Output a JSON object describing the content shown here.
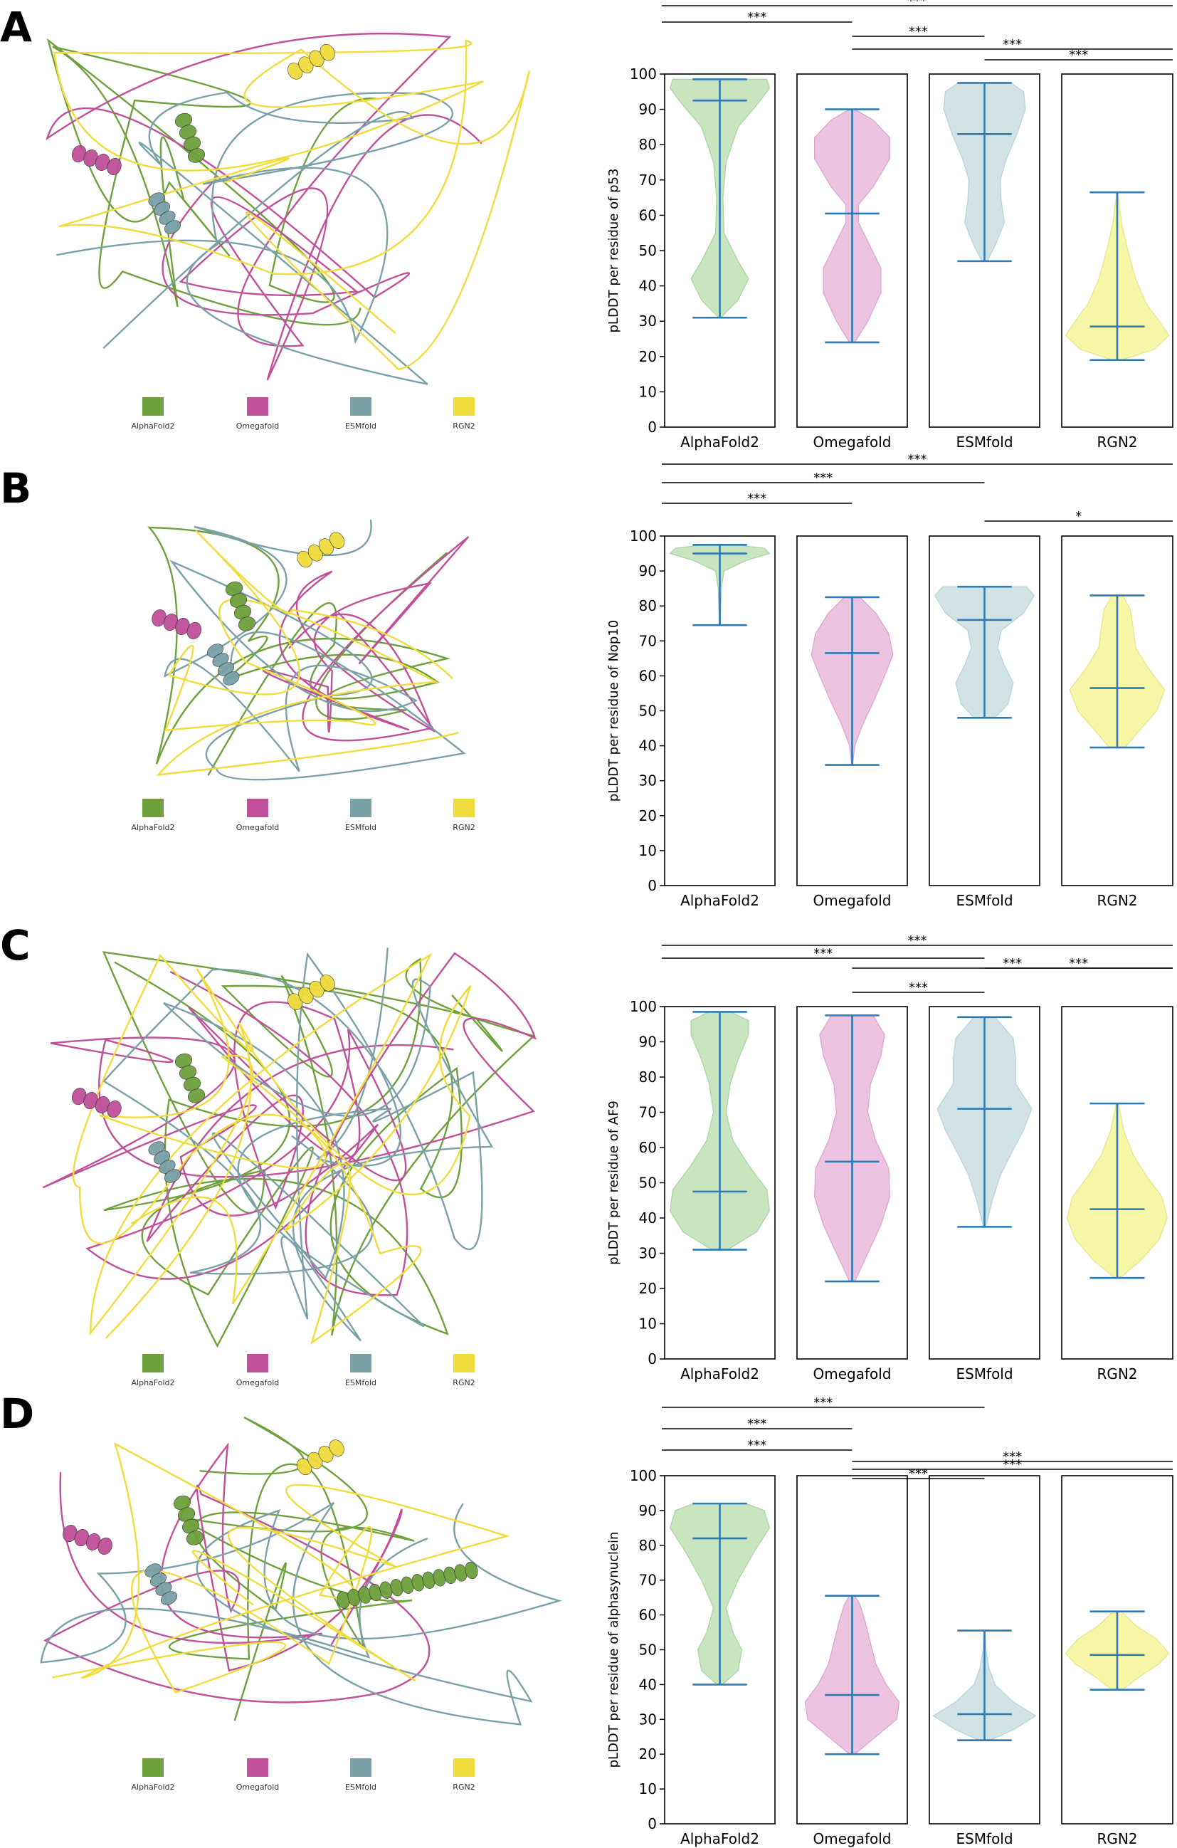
{
  "legend": [
    {
      "label": "AlphaFold2",
      "color": "#6ea03c"
    },
    {
      "label": "Omegafold",
      "color": "#c0509a"
    },
    {
      "label": "ESMfold",
      "color": "#7aa0a8"
    },
    {
      "label": "RGN2",
      "color": "#f0dc3c"
    }
  ],
  "tool_colors": {
    "AlphaFold2": {
      "fill": "#c9e5c0",
      "edge": "#a8d3a0"
    },
    "Omegafold": {
      "fill": "#ecc3e1",
      "edge": "#d9a3cf"
    },
    "ESMfold": {
      "fill": "#d2e3e6",
      "edge": "#b7d2d6"
    },
    "RGN2": {
      "fill": "#f8f7a8",
      "edge": "#e6e58a"
    }
  },
  "stat_color": "#2e7bb4",
  "panels": [
    {
      "letter": "A",
      "structure_desc": "ribbon",
      "chart_data": {
        "type": "violin",
        "ylabel": "pLDDT per residue of p53",
        "ylim": [
          0,
          100
        ],
        "yticks": [
          0,
          10,
          20,
          30,
          40,
          50,
          60,
          70,
          80,
          90,
          100
        ],
        "categories": [
          "AlphaFold2",
          "Omegafold",
          "ESMfold",
          "RGN2"
        ],
        "series": [
          {
            "name": "AlphaFold2",
            "min": 31,
            "median": 92.5,
            "max": 98.5,
            "profile": [
              [
                31,
                0.02
              ],
              [
                36,
                0.35
              ],
              [
                42,
                0.55
              ],
              [
                47,
                0.35
              ],
              [
                55,
                0.08
              ],
              [
                65,
                0.06
              ],
              [
                75,
                0.12
              ],
              [
                85,
                0.35
              ],
              [
                92,
                0.75
              ],
              [
                96,
                0.95
              ],
              [
                98.5,
                0.9
              ]
            ]
          },
          {
            "name": "Omegafold",
            "min": 24,
            "median": 60.5,
            "max": 90,
            "profile": [
              [
                24,
                0.05
              ],
              [
                30,
                0.3
              ],
              [
                38,
                0.55
              ],
              [
                45,
                0.55
              ],
              [
                52,
                0.32
              ],
              [
                58,
                0.12
              ],
              [
                63,
                0.12
              ],
              [
                68,
                0.4
              ],
              [
                76,
                0.72
              ],
              [
                82,
                0.72
              ],
              [
                87,
                0.4
              ],
              [
                90,
                0.05
              ]
            ]
          },
          {
            "name": "ESMfold",
            "min": 47,
            "median": 83,
            "max": 97.5,
            "profile": [
              [
                47,
                0.05
              ],
              [
                52,
                0.22
              ],
              [
                58,
                0.38
              ],
              [
                64,
                0.32
              ],
              [
                70,
                0.3
              ],
              [
                76,
                0.42
              ],
              [
                83,
                0.62
              ],
              [
                90,
                0.78
              ],
              [
                95,
                0.75
              ],
              [
                97.5,
                0.5
              ]
            ]
          },
          {
            "name": "RGN2",
            "min": 19,
            "median": 28.5,
            "max": 66.5,
            "profile": [
              [
                19,
                0.08
              ],
              [
                22,
                0.7
              ],
              [
                26,
                0.98
              ],
              [
                30,
                0.8
              ],
              [
                35,
                0.55
              ],
              [
                42,
                0.35
              ],
              [
                50,
                0.2
              ],
              [
                58,
                0.08
              ],
              [
                66.5,
                0.01
              ]
            ]
          }
        ],
        "annotations": [
          {
            "from": 0,
            "to": 3,
            "level": 0,
            "label": "***"
          },
          {
            "from": 0,
            "to": 1,
            "level": 1,
            "label": "***"
          },
          {
            "from": 1,
            "to": 2,
            "level": 2,
            "label": "***"
          },
          {
            "from": 1,
            "to": 3,
            "level": 3,
            "label": "***"
          },
          {
            "from": 2,
            "to": 3,
            "level": 4,
            "label": "***"
          }
        ]
      }
    },
    {
      "letter": "B",
      "structure_desc": "ribbon",
      "chart_data": {
        "type": "violin",
        "ylabel": "pLDDT per residue of Nop10",
        "ylim": [
          0,
          100
        ],
        "yticks": [
          0,
          10,
          20,
          30,
          40,
          50,
          60,
          70,
          80,
          90,
          100
        ],
        "categories": [
          "AlphaFold2",
          "Omegafold",
          "ESMfold",
          "RGN2"
        ],
        "series": [
          {
            "name": "AlphaFold2",
            "min": 74.5,
            "median": 95,
            "max": 97.5,
            "profile": [
              [
                74.5,
                0.01
              ],
              [
                85,
                0.03
              ],
              [
                90,
                0.08
              ],
              [
                93,
                0.5
              ],
              [
                95,
                0.95
              ],
              [
                96.5,
                0.85
              ],
              [
                97.5,
                0.3
              ]
            ]
          },
          {
            "name": "Omegafold",
            "min": 34.5,
            "median": 66.5,
            "max": 82.5,
            "profile": [
              [
                34.5,
                0.01
              ],
              [
                40,
                0.05
              ],
              [
                46,
                0.2
              ],
              [
                53,
                0.42
              ],
              [
                60,
                0.62
              ],
              [
                66,
                0.78
              ],
              [
                72,
                0.7
              ],
              [
                78,
                0.45
              ],
              [
                82.5,
                0.15
              ]
            ]
          },
          {
            "name": "ESMfold",
            "min": 48,
            "median": 76,
            "max": 85.5,
            "profile": [
              [
                48,
                0.2
              ],
              [
                52,
                0.45
              ],
              [
                58,
                0.55
              ],
              [
                63,
                0.38
              ],
              [
                68,
                0.25
              ],
              [
                73,
                0.32
              ],
              [
                78,
                0.75
              ],
              [
                83,
                0.95
              ],
              [
                85.5,
                0.8
              ]
            ]
          },
          {
            "name": "RGN2",
            "min": 39.5,
            "median": 56.5,
            "max": 83,
            "profile": [
              [
                39.5,
                0.15
              ],
              [
                44,
                0.4
              ],
              [
                50,
                0.75
              ],
              [
                56,
                0.9
              ],
              [
                62,
                0.6
              ],
              [
                68,
                0.35
              ],
              [
                74,
                0.3
              ],
              [
                79,
                0.25
              ],
              [
                83,
                0.1
              ]
            ]
          }
        ],
        "annotations": [
          {
            "from": 0,
            "to": 3,
            "level": 0,
            "label": "***"
          },
          {
            "from": 0,
            "to": 2,
            "level": 1,
            "label": "***"
          },
          {
            "from": 0,
            "to": 1,
            "level": 2,
            "label": "***"
          },
          {
            "from": 2,
            "to": 3,
            "level": 3,
            "label": "*"
          }
        ]
      }
    },
    {
      "letter": "C",
      "structure_desc": "ribbon",
      "chart_data": {
        "type": "violin",
        "ylabel": "pLDDT per residue of AF9",
        "ylim": [
          0,
          100
        ],
        "yticks": [
          0,
          10,
          20,
          30,
          40,
          50,
          60,
          70,
          80,
          90,
          100
        ],
        "categories": [
          "AlphaFold2",
          "Omegafold",
          "ESMfold",
          "RGN2"
        ],
        "series": [
          {
            "name": "AlphaFold2",
            "min": 31,
            "median": 47.5,
            "max": 98.5,
            "profile": [
              [
                31,
                0.15
              ],
              [
                36,
                0.7
              ],
              [
                42,
                0.95
              ],
              [
                48,
                0.9
              ],
              [
                55,
                0.55
              ],
              [
                62,
                0.25
              ],
              [
                70,
                0.12
              ],
              [
                78,
                0.2
              ],
              [
                85,
                0.35
              ],
              [
                92,
                0.55
              ],
              [
                96,
                0.55
              ],
              [
                98.5,
                0.2
              ]
            ]
          },
          {
            "name": "Omegafold",
            "min": 22,
            "median": 56,
            "max": 97.5,
            "profile": [
              [
                22,
                0.05
              ],
              [
                30,
                0.3
              ],
              [
                38,
                0.55
              ],
              [
                46,
                0.72
              ],
              [
                54,
                0.7
              ],
              [
                62,
                0.45
              ],
              [
                70,
                0.3
              ],
              [
                78,
                0.35
              ],
              [
                86,
                0.55
              ],
              [
                92,
                0.62
              ],
              [
                97.5,
                0.4
              ]
            ]
          },
          {
            "name": "ESMfold",
            "min": 37.5,
            "median": 71,
            "max": 97,
            "profile": [
              [
                37.5,
                0.02
              ],
              [
                45,
                0.15
              ],
              [
                52,
                0.3
              ],
              [
                58,
                0.5
              ],
              [
                65,
                0.75
              ],
              [
                71,
                0.9
              ],
              [
                78,
                0.6
              ],
              [
                85,
                0.6
              ],
              [
                91,
                0.55
              ],
              [
                97,
                0.2
              ]
            ]
          },
          {
            "name": "RGN2",
            "min": 23,
            "median": 42.5,
            "max": 72.5,
            "profile": [
              [
                23,
                0.05
              ],
              [
                28,
                0.45
              ],
              [
                34,
                0.8
              ],
              [
                40,
                0.95
              ],
              [
                46,
                0.85
              ],
              [
                52,
                0.55
              ],
              [
                58,
                0.3
              ],
              [
                65,
                0.12
              ],
              [
                72.5,
                0.02
              ]
            ]
          }
        ],
        "annotations": [
          {
            "from": 0,
            "to": 3,
            "level": 0,
            "label": "***"
          },
          {
            "from": 0,
            "to": 2,
            "level": 1,
            "label": "***"
          },
          {
            "from": 2,
            "to": 3,
            "level": 2,
            "label": "***"
          },
          {
            "from": 1,
            "to": 3,
            "level": 2.9,
            "label": "***"
          },
          {
            "from": 1,
            "to": 2,
            "level": 4,
            "label": "***"
          }
        ]
      }
    },
    {
      "letter": "D",
      "structure_desc": "ribbon",
      "chart_data": {
        "type": "violin",
        "ylabel": "pLDDT per residue of alphasynuclein",
        "ylim": [
          0,
          100
        ],
        "yticks": [
          0,
          10,
          20,
          30,
          40,
          50,
          60,
          70,
          80,
          90,
          100
        ],
        "categories": [
          "AlphaFold2",
          "Omegafold",
          "ESMfold",
          "RGN2"
        ],
        "series": [
          {
            "name": "AlphaFold2",
            "min": 40,
            "median": 82,
            "max": 92,
            "profile": [
              [
                40,
                0.05
              ],
              [
                44,
                0.35
              ],
              [
                50,
                0.42
              ],
              [
                55,
                0.25
              ],
              [
                62,
                0.12
              ],
              [
                70,
                0.35
              ],
              [
                78,
                0.65
              ],
              [
                85,
                0.95
              ],
              [
                90,
                0.85
              ],
              [
                92,
                0.5
              ]
            ]
          },
          {
            "name": "Omegafold",
            "min": 20,
            "median": 37,
            "max": 65.5,
            "profile": [
              [
                20,
                0.05
              ],
              [
                25,
                0.45
              ],
              [
                30,
                0.85
              ],
              [
                35,
                0.9
              ],
              [
                40,
                0.65
              ],
              [
                46,
                0.45
              ],
              [
                52,
                0.35
              ],
              [
                58,
                0.25
              ],
              [
                63,
                0.15
              ],
              [
                65.5,
                0.05
              ]
            ]
          },
          {
            "name": "ESMfold",
            "min": 24,
            "median": 31.5,
            "max": 55.5,
            "profile": [
              [
                24,
                0.1
              ],
              [
                27,
                0.55
              ],
              [
                31,
                0.98
              ],
              [
                35,
                0.55
              ],
              [
                40,
                0.2
              ],
              [
                45,
                0.08
              ],
              [
                50,
                0.03
              ],
              [
                55.5,
                0.01
              ]
            ]
          },
          {
            "name": "RGN2",
            "min": 38.5,
            "median": 48.5,
            "max": 61,
            "profile": [
              [
                38.5,
                0.1
              ],
              [
                42,
                0.4
              ],
              [
                46,
                0.8
              ],
              [
                49,
                0.98
              ],
              [
                53,
                0.75
              ],
              [
                57,
                0.35
              ],
              [
                61,
                0.08
              ]
            ]
          }
        ],
        "annotations": [
          {
            "from": 0,
            "to": 2,
            "level": 0,
            "label": "***"
          },
          {
            "from": 0,
            "to": 1,
            "level": 1,
            "label": "***"
          },
          {
            "from": 0,
            "to": 1,
            "level": 2,
            "label": "***"
          },
          {
            "from": 1,
            "to": 3,
            "level": 3,
            "label": "***"
          },
          {
            "from": 1,
            "to": 3,
            "level": 3.6,
            "label": "***"
          },
          {
            "from": 1,
            "to": 2,
            "level": 4.3,
            "label": "***"
          }
        ]
      }
    }
  ]
}
